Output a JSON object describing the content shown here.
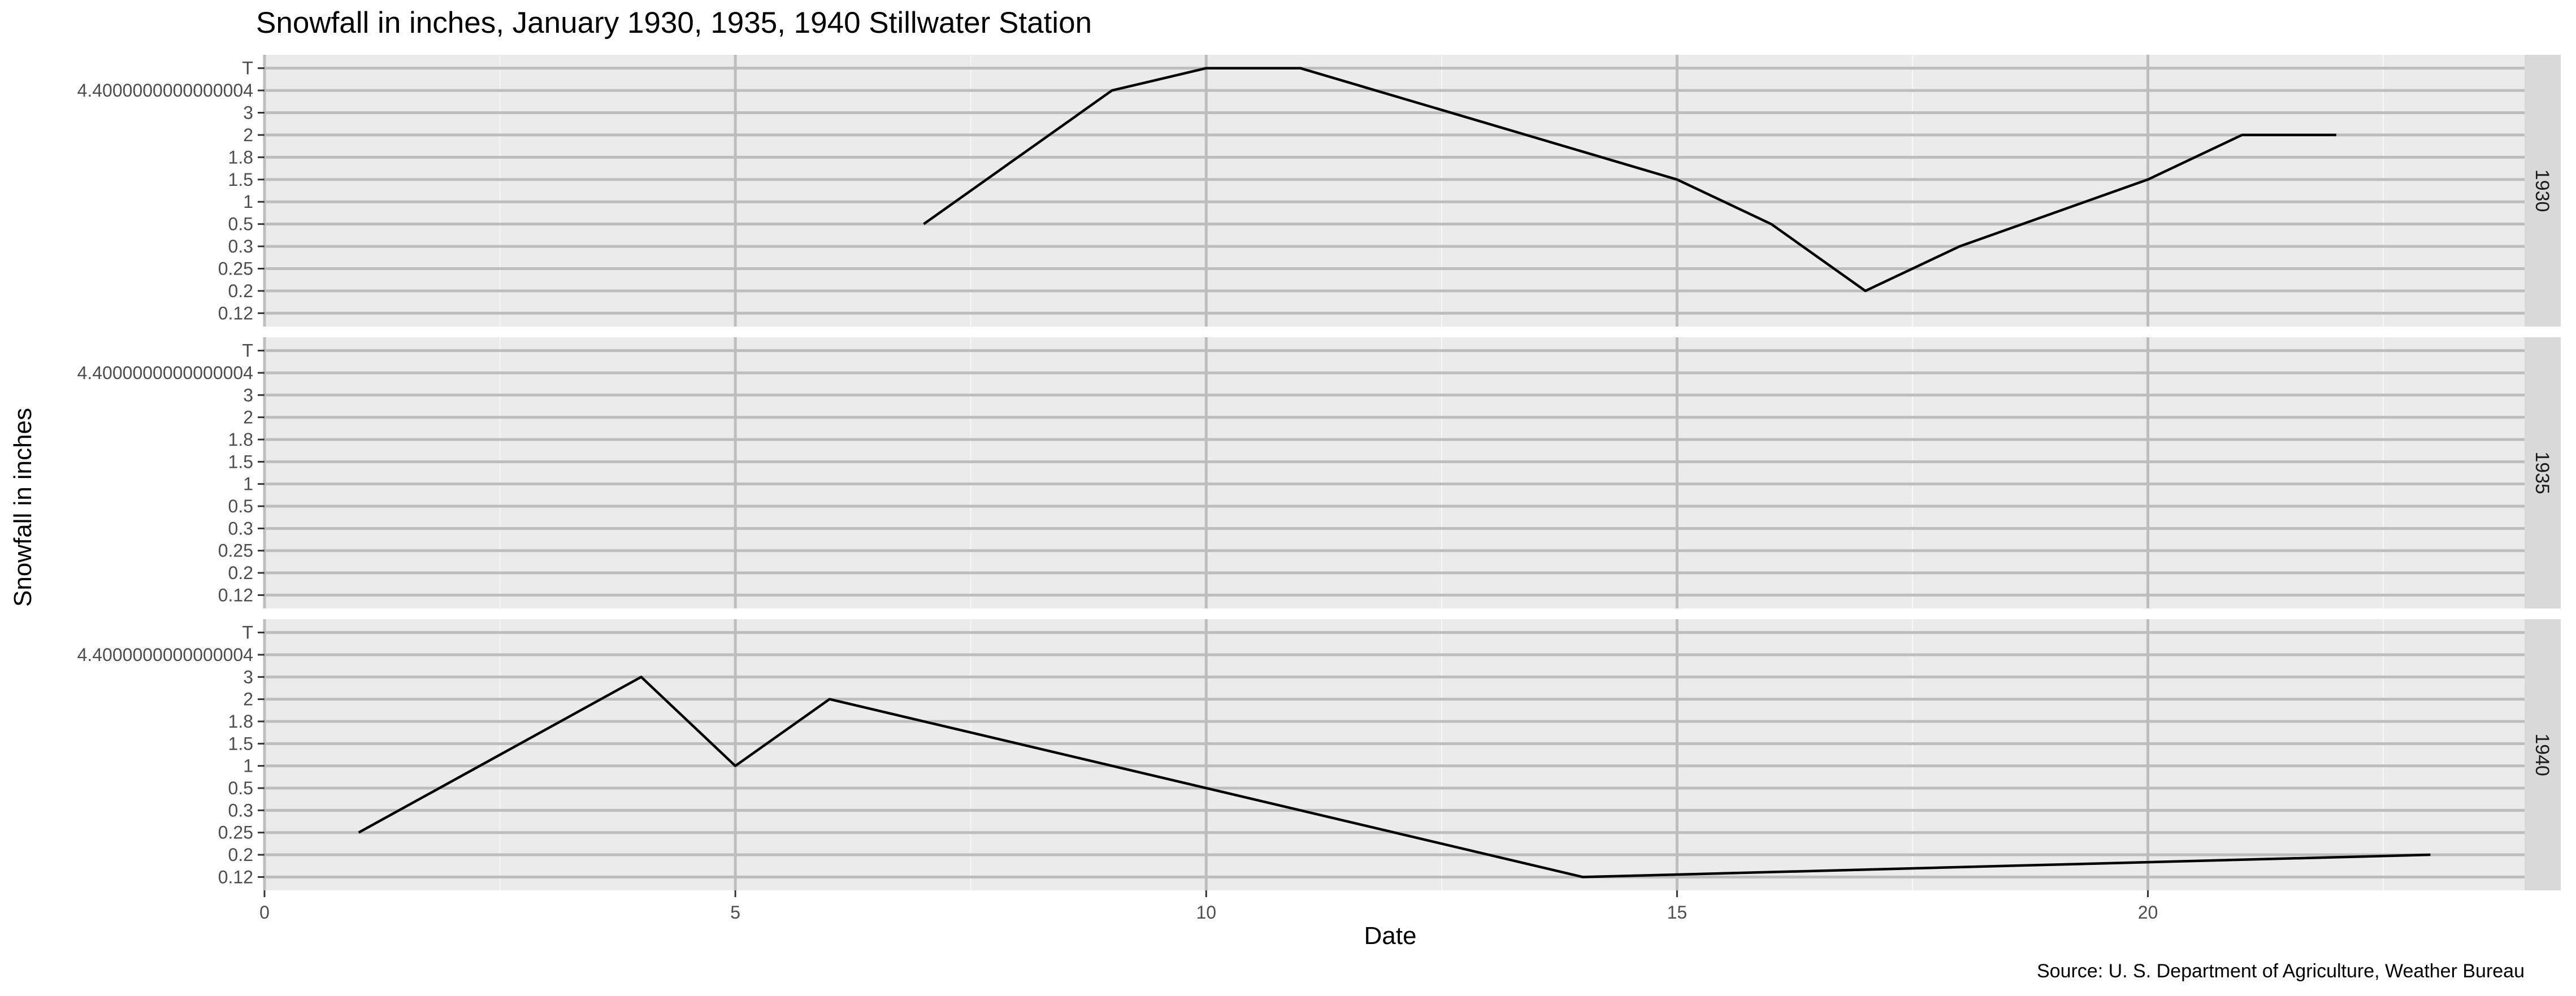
{
  "chart_data": {
    "type": "line",
    "title": "Snowfall in inches, January 1930, 1935, 1940 Stillwater Station",
    "xlabel": "Date",
    "ylabel": "Snowfall in inches",
    "caption": "Source: U. S. Department of Agriculture, Weather Bureau",
    "x_ticks": [
      0,
      5,
      10,
      15,
      20
    ],
    "xlim": [
      0,
      24
    ],
    "y_categories": [
      "0.12",
      "0.2",
      "0.25",
      "0.3",
      "0.5",
      "1",
      "1.5",
      "1.8",
      "2",
      "3",
      "4.4000000000000004",
      "T"
    ],
    "facet_layout": "rows",
    "grid": true,
    "legend": "none",
    "line_color": "#000000",
    "panel_color": "#ebebeb",
    "strip_color": "#d9d9d9",
    "series": [
      {
        "name": "1930",
        "points": [
          {
            "x": 7,
            "y": "0.5"
          },
          {
            "x": 9,
            "y": "4.4000000000000004"
          },
          {
            "x": 10,
            "y": "T"
          },
          {
            "x": 11,
            "y": "T"
          },
          {
            "x": 15,
            "y": "1.5"
          },
          {
            "x": 16,
            "y": "0.5"
          },
          {
            "x": 17,
            "y": "0.2"
          },
          {
            "x": 18,
            "y": "0.3"
          },
          {
            "x": 20,
            "y": "1.5"
          },
          {
            "x": 21,
            "y": "2"
          },
          {
            "x": 22,
            "y": "2"
          }
        ]
      },
      {
        "name": "1935",
        "points": []
      },
      {
        "name": "1940",
        "points": [
          {
            "x": 1,
            "y": "0.25"
          },
          {
            "x": 4,
            "y": "3"
          },
          {
            "x": 5,
            "y": "1"
          },
          {
            "x": 6,
            "y": "2"
          },
          {
            "x": 14,
            "y": "0.12"
          },
          {
            "x": 23,
            "y": "0.2"
          }
        ]
      }
    ]
  }
}
